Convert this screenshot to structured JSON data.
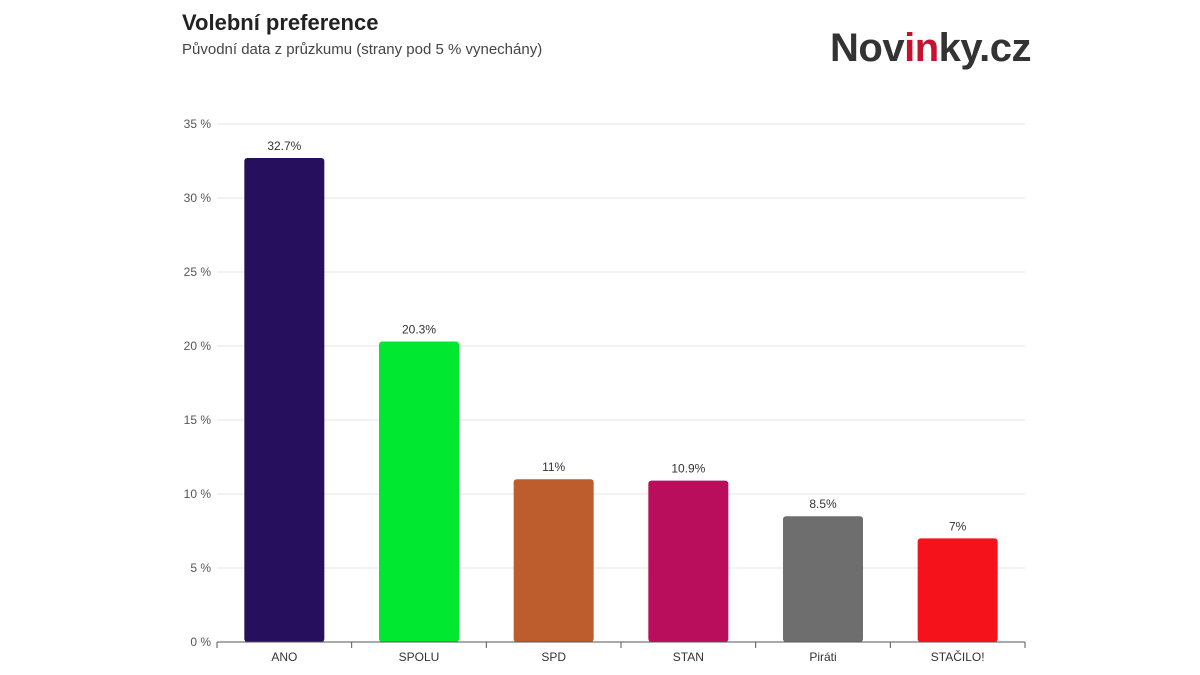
{
  "header": {
    "title": "Volební preference",
    "subtitle": "Původní data z průzkumu (strany pod 5 % vynechány)"
  },
  "logo": {
    "part1": "Nov",
    "part2": "in",
    "part3": "ky.cz",
    "accent_color": "#c4122f"
  },
  "chart_data": {
    "type": "bar",
    "categories": [
      "ANO",
      "SPOLU",
      "SPD",
      "STAN",
      "Piráti",
      "STAČILO!"
    ],
    "values": [
      32.7,
      20.3,
      11,
      10.9,
      8.5,
      7
    ],
    "value_labels": [
      "32.7%",
      "20.3%",
      "11%",
      "10.9%",
      "8.5%",
      "7%"
    ],
    "colors": [
      "#26105e",
      "#00e830",
      "#bd5d2e",
      "#b80e5c",
      "#6e6e6e",
      "#f5121b"
    ],
    "ylim": [
      0,
      35
    ],
    "yticks": [
      0,
      5,
      10,
      15,
      20,
      25,
      30,
      35
    ],
    "ytick_labels": [
      "0 %",
      "5 %",
      "10 %",
      "15 %",
      "20 %",
      "25 %",
      "30 %",
      "35 %"
    ],
    "grid": true,
    "title": "Volební preference",
    "xlabel": "",
    "ylabel": ""
  }
}
